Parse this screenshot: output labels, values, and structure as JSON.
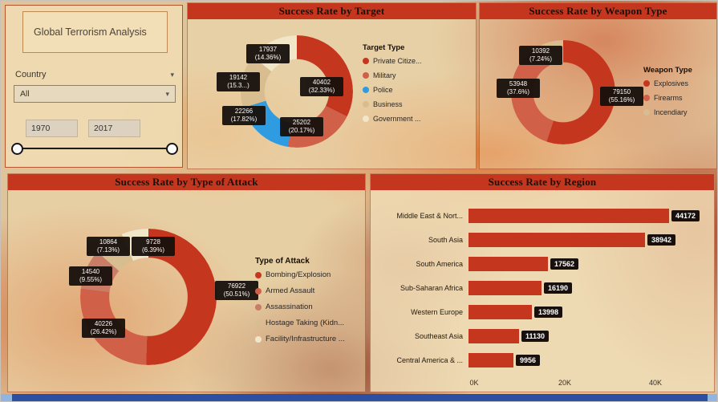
{
  "sidebar": {
    "title": "Global Terrorism Analysis",
    "country_label": "Country",
    "country_value": "All",
    "year_start": "1970",
    "year_end": "2017"
  },
  "colors": {
    "primary_red": "#C4371E",
    "salmon": "#D06048",
    "salmon_dark": "#C97C66",
    "police_blue": "#2F9BE0",
    "tan": "#D8BD90",
    "cream": "#F2E6C9",
    "label_bg": "#17100C",
    "bottom_bar_blue": "#2C4FA3"
  },
  "chart_data": [
    {
      "id": "target",
      "type": "pie",
      "title": "Success Rate by Target",
      "legend_title": "Target Type",
      "legend_position": "right",
      "slices": [
        {
          "label": "Private Citize...",
          "value": 40402,
          "value_text": "40402",
          "pct_text": "(32.33%)",
          "color": "#C4371E"
        },
        {
          "label": "Military",
          "value": 25202,
          "value_text": "25202",
          "pct_text": "(20.17%)",
          "color": "#D06048"
        },
        {
          "label": "Police",
          "value": 22266,
          "value_text": "22266",
          "pct_text": "(17.82%)",
          "color": "#2F9BE0"
        },
        {
          "label": "Business",
          "value": 19142,
          "value_text": "19142",
          "pct_text": "(15.3...)",
          "color": "#D8BD90"
        },
        {
          "label": "Government ...",
          "value": 17937,
          "value_text": "17937",
          "pct_text": "(14.36%)",
          "color": "#F2E6C9"
        }
      ]
    },
    {
      "id": "weapon",
      "type": "pie",
      "title": "Success Rate by Weapon Type",
      "legend_title": "Weapon Type",
      "legend_position": "right",
      "slices": [
        {
          "label": "Explosives",
          "value": 79150,
          "value_text": "79150",
          "pct_text": "(55.16%)",
          "color": "#C4371E"
        },
        {
          "label": "Firearms",
          "value": 53948,
          "value_text": "53948",
          "pct_text": "(37.6%)",
          "color": "#D06048"
        },
        {
          "label": "Incendiary",
          "value": 10392,
          "value_text": "10392",
          "pct_text": "(7.24%)",
          "color": "#D8BD90"
        }
      ]
    },
    {
      "id": "attack",
      "type": "pie",
      "title": "Success Rate by Type of Attack",
      "legend_title": "Type of Attack",
      "legend_position": "right",
      "slices": [
        {
          "label": "Bombing/Explosion",
          "value": 76922,
          "value_text": "76922",
          "pct_text": "(50.51%)",
          "color": "#C4371E"
        },
        {
          "label": "Armed Assault",
          "value": 40226,
          "value_text": "40226",
          "pct_text": "(26.42%)",
          "color": "#D06048"
        },
        {
          "label": "Assassination",
          "value": 14540,
          "value_text": "14540",
          "pct_text": "(9.55%)",
          "color": "#C97C66"
        },
        {
          "label": "Hostage Taking (Kidn...",
          "value": 10864,
          "value_text": "10864",
          "pct_text": "(7.13%)",
          "color": "#D8BD90"
        },
        {
          "label": "Facility/Infrastructure ...",
          "value": 9728,
          "value_text": "9728",
          "pct_text": "(6.39%)",
          "color": "#F2E6C9"
        }
      ]
    },
    {
      "id": "region",
      "type": "bar",
      "title": "Success Rate by Region",
      "orientation": "horizontal",
      "bar_color": "#C4371E",
      "categories": [
        "Middle East & Nort...",
        "South Asia",
        "South America",
        "Sub-Saharan Africa",
        "Western Europe",
        "Southeast Asia",
        "Central America & ..."
      ],
      "values": [
        44172,
        38942,
        17562,
        16190,
        13998,
        11130,
        9956
      ],
      "x_ticks": [
        "0K",
        "20K",
        "40K"
      ],
      "xlim": [
        0,
        46000
      ]
    }
  ]
}
